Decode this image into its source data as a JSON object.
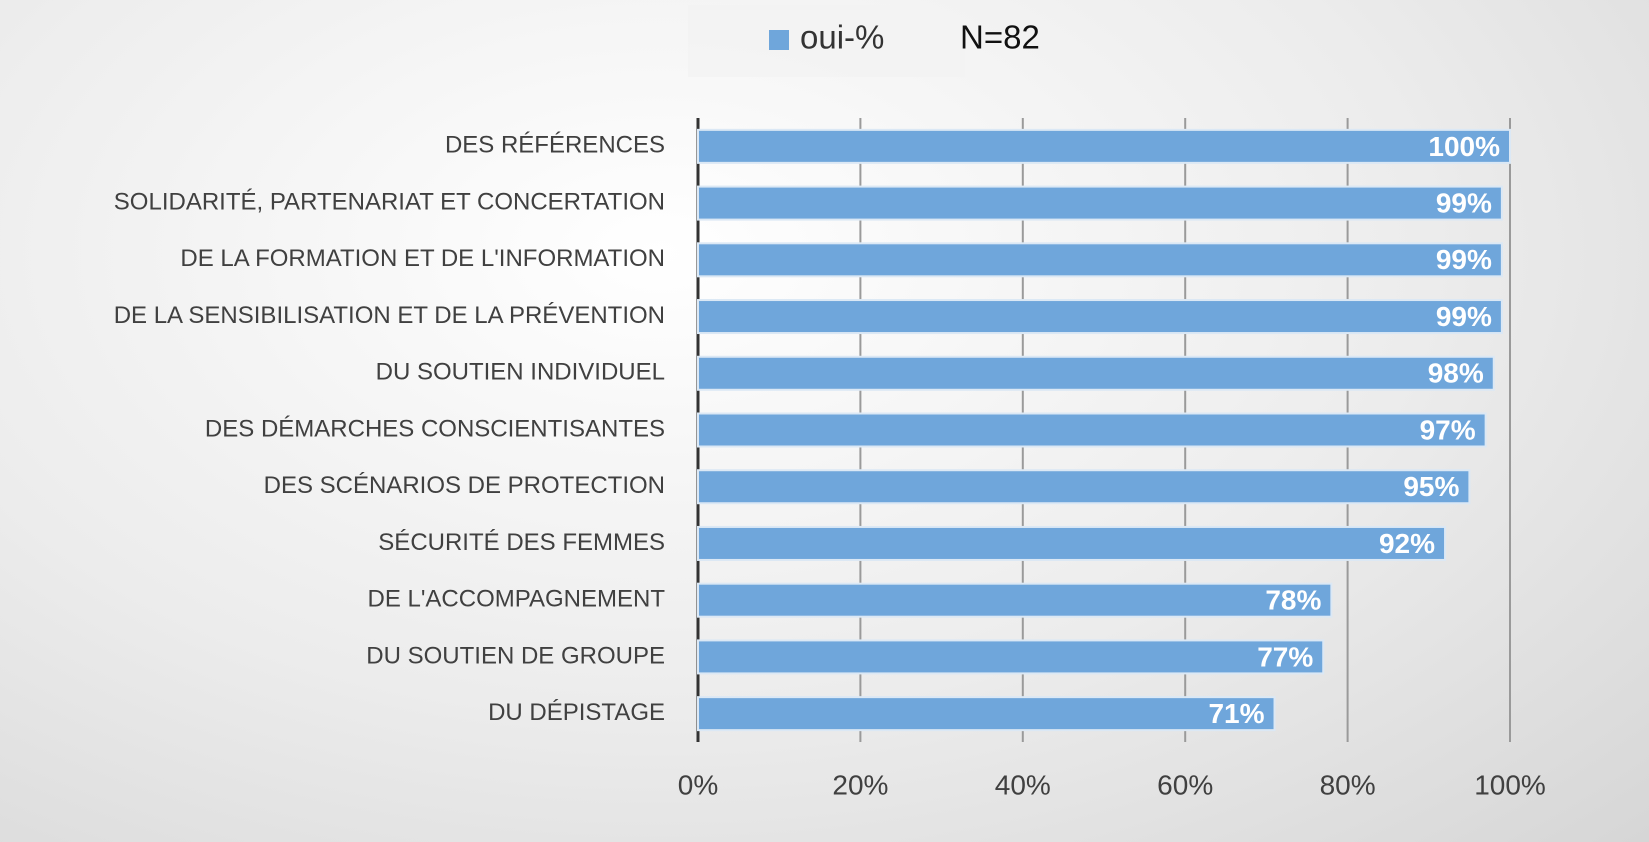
{
  "chart_data": {
    "type": "bar",
    "orientation": "horizontal",
    "annotation": "N=82",
    "categories": [
      "DES RÉFÉRENCES",
      "SOLIDARITÉ, PARTENARIAT ET CONCERTATION",
      "DE LA FORMATION ET DE L'INFORMATION",
      "DE LA SENSIBILISATION ET DE LA PRÉVENTION",
      "DU SOUTIEN INDIVIDUEL",
      "DES DÉMARCHES CONSCIENTISANTES",
      "DES SCÉNARIOS DE PROTECTION",
      "SÉCURITÉ DES FEMMES",
      "DE L'ACCOMPAGNEMENT",
      "DU SOUTIEN DE GROUPE",
      "DU DÉPISTAGE"
    ],
    "series": [
      {
        "name": "oui-%",
        "color": "#6fa6db",
        "values": [
          100,
          99,
          99,
          99,
          98,
          97,
          95,
          92,
          78,
          77,
          71
        ],
        "value_labels": [
          "100%",
          "99%",
          "99%",
          "99%",
          "98%",
          "97%",
          "95%",
          "92%",
          "78%",
          "77%",
          "71%"
        ]
      }
    ],
    "xlim": [
      0,
      100
    ],
    "xticks": [
      {
        "value": 0,
        "label": "0%"
      },
      {
        "value": 20,
        "label": "20%"
      },
      {
        "value": 40,
        "label": "40%"
      },
      {
        "value": 60,
        "label": "60%"
      },
      {
        "value": 80,
        "label": "80%"
      },
      {
        "value": 100,
        "label": "100%"
      }
    ],
    "grid": true
  }
}
